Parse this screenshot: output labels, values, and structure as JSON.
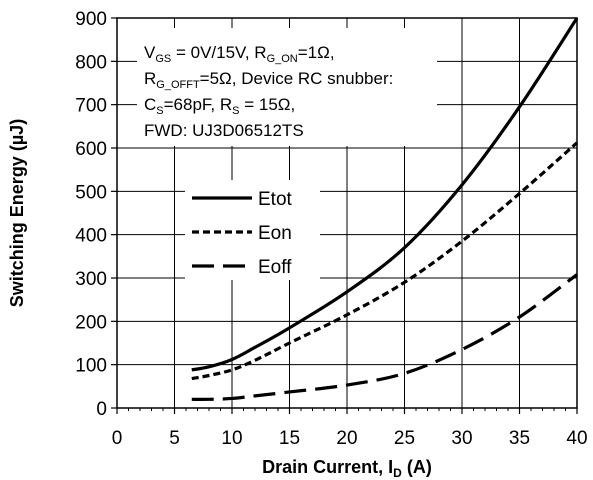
{
  "chart_data": {
    "type": "line",
    "xlabel": {
      "main": "Drain Current, I",
      "sub": "D",
      "unit": " (A)"
    },
    "ylabel": "Switching Energy (µJ)",
    "xlim": [
      0,
      40
    ],
    "ylim": [
      0,
      900
    ],
    "xticks": [
      "0",
      "5",
      "10",
      "15",
      "20",
      "25",
      "30",
      "35",
      "40"
    ],
    "yticks": [
      "0",
      "100",
      "200",
      "300",
      "400",
      "500",
      "600",
      "700",
      "800",
      "900"
    ],
    "grid": true,
    "legend_position": "center-left",
    "annotation": {
      "line1": {
        "a": "V",
        "a_sub": "GS",
        "b": " = 0V/15V, R",
        "b_sub": "G_ON",
        "c": "=1Ω,"
      },
      "line2": {
        "a": "R",
        "a_sub": "G_OFFT",
        "b": "=5Ω,  Device RC snubber:"
      },
      "line3": {
        "a": "C",
        "a_sub": "S",
        "b": "=68pF,   R",
        "b_sub": "S",
        "c": " = 15Ω,"
      },
      "line4": "FWD: UJ3D06512TS"
    },
    "series": [
      {
        "name": "Etot",
        "style": "solid",
        "x": [
          6.5,
          8,
          10,
          12,
          15,
          20,
          25,
          30,
          35,
          40
        ],
        "y": [
          88,
          95,
          112,
          140,
          185,
          268,
          370,
          515,
          695,
          900
        ]
      },
      {
        "name": "Eon",
        "style": "short-dash",
        "x": [
          6.5,
          8,
          10,
          12,
          15,
          20,
          25,
          30,
          35,
          40
        ],
        "y": [
          68,
          75,
          88,
          110,
          150,
          215,
          290,
          385,
          495,
          612
        ]
      },
      {
        "name": "Eoff",
        "style": "long-dash",
        "x": [
          6.5,
          8,
          10,
          12,
          15,
          20,
          25,
          30,
          35,
          40
        ],
        "y": [
          20,
          20,
          22,
          28,
          37,
          53,
          80,
          135,
          210,
          308
        ]
      }
    ]
  }
}
